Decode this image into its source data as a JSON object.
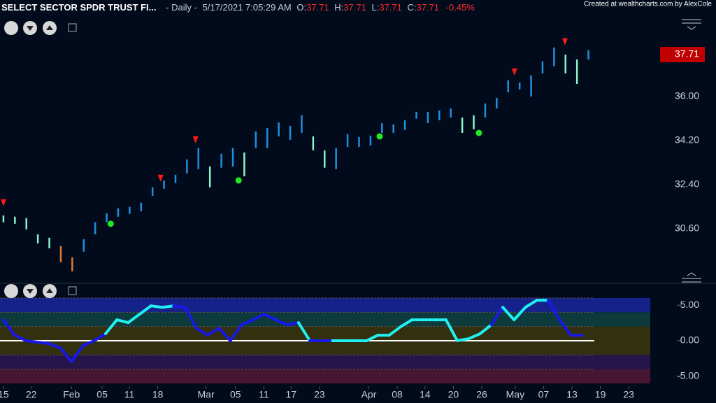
{
  "header": {
    "title": "SELECT SECTOR SPDR TRUST FI...",
    "interval": "- Daily -",
    "timestamp": "5/17/2021 7:05:29 AM",
    "ohlc": [
      {
        "label": "O:",
        "value": "37.71"
      },
      {
        "label": "H:",
        "value": "37.71"
      },
      {
        "label": "L:",
        "value": "37.71"
      },
      {
        "label": "C:",
        "value": "37.71"
      }
    ],
    "change": "-0.45%",
    "credit": "Created at wealthcharts.com by AlexCole"
  },
  "chart_data": [
    {
      "type": "range_bars",
      "x": [
        0,
        2,
        4,
        6,
        8,
        10,
        12,
        14,
        16,
        18,
        20,
        22,
        24,
        26,
        28,
        30,
        32,
        34,
        36,
        38,
        40,
        42,
        44,
        46,
        48,
        50,
        52,
        54,
        56,
        58,
        60,
        62,
        64,
        66,
        68,
        70,
        72,
        74,
        76,
        78,
        80,
        82,
        84,
        86,
        88,
        90,
        92,
        94,
        96,
        98,
        100,
        102
      ],
      "high": [
        31.14,
        31.09,
        31.03,
        30.37,
        30.23,
        29.89,
        29.43,
        30.17,
        30.86,
        31.23,
        31.43,
        31.49,
        31.66,
        32.29,
        32.57,
        32.8,
        33.43,
        33.89,
        33.14,
        33.66,
        33.89,
        33.71,
        34.57,
        34.71,
        34.94,
        34.8,
        35.23,
        34.37,
        33.8,
        33.89,
        34.46,
        34.34,
        34.4,
        34.91,
        34.86,
        35.03,
        35.37,
        35.37,
        35.43,
        35.51,
        35.14,
        35.23,
        35.71,
        35.94,
        36.66,
        36.57,
        36.86,
        37.43,
        38.0,
        37.71,
        37.51,
        37.89
      ],
      "low": [
        30.86,
        30.8,
        30.57,
        30.0,
        29.8,
        29.23,
        28.86,
        29.66,
        30.37,
        30.86,
        31.09,
        31.2,
        31.31,
        31.94,
        32.23,
        32.46,
        32.86,
        33.03,
        32.29,
        33.09,
        33.14,
        32.74,
        33.89,
        33.89,
        34.37,
        34.23,
        34.51,
        33.8,
        33.09,
        33.03,
        33.94,
        33.94,
        34.0,
        34.51,
        34.51,
        34.63,
        35.09,
        34.91,
        35.03,
        35.14,
        34.51,
        34.66,
        35.14,
        35.51,
        36.17,
        36.29,
        36.0,
        36.94,
        37.23,
        36.94,
        36.51,
        37.51
      ],
      "bar_colors": [
        "#8af5c8",
        "#8af5c8",
        "#8af5c8",
        "#8af5c8",
        "#8af5c8",
        "#e07a30",
        "#e07a30",
        "#1e90e0",
        "#1e90e0",
        "#1e90e0",
        "#1e90e0",
        "#1e90e0",
        "#1e90e0",
        "#1e90e0",
        "#1e90e0",
        "#1e90e0",
        "#1e90e0",
        "#1e90e0",
        "#8af5c8",
        "#1e90e0",
        "#1e90e0",
        "#8af5c8",
        "#1e90e0",
        "#1e90e0",
        "#1e90e0",
        "#1e90e0",
        "#1e90e0",
        "#8af5c8",
        "#8af5c8",
        "#1e90e0",
        "#1e90e0",
        "#1e90e0",
        "#1e90e0",
        "#1e90e0",
        "#1e90e0",
        "#1e90e0",
        "#1e90e0",
        "#1e90e0",
        "#1e90e0",
        "#1e90e0",
        "#8af5c8",
        "#8af5c8",
        "#1e90e0",
        "#1e90e0",
        "#1e90e0",
        "#1e90e0",
        "#1e90e0",
        "#1e90e0",
        "#1e90e0",
        "#8af5c8",
        "#8af5c8",
        "#1e90e0"
      ],
      "sell_signals": {
        "x": [
          0,
          27.4,
          33.5,
          89.1,
          97.9
        ],
        "y": [
          31.66,
          32.66,
          34.23,
          37.0,
          38.23
        ],
        "color": "#ff1a1a"
      },
      "buy_signals": {
        "x": [
          18.7,
          41.0,
          65.6,
          82.9
        ],
        "y": [
          30.8,
          32.57,
          34.37,
          34.51
        ],
        "color": "#22e822"
      },
      "xlim": [
        -0.6,
        114
      ],
      "ylim": [
        28.51,
        39.31
      ],
      "yticks": [
        {
          "value": 30.6,
          "label": "30.60"
        },
        {
          "value": 32.4,
          "label": "32.40"
        },
        {
          "value": 34.2,
          "label": "34.20"
        },
        {
          "value": 36.0,
          "label": "36.00"
        }
      ],
      "last_price": 37.71,
      "last_price_color": "#c00000"
    },
    {
      "type": "oscillator",
      "x": [
        0,
        2,
        4,
        6,
        8,
        10,
        12,
        14,
        16,
        18,
        20,
        22,
        24,
        26,
        28,
        30,
        32,
        34,
        36,
        38,
        40,
        42,
        44,
        46,
        48,
        50,
        52,
        54,
        56,
        58,
        60,
        62,
        64,
        66,
        68,
        70,
        72,
        74,
        76,
        78,
        80,
        82,
        84,
        86,
        88,
        90,
        92,
        94,
        96,
        98,
        100,
        102
      ],
      "values": [
        2.94,
        0.78,
        0,
        -0.2,
        -0.4,
        -1,
        -2.94,
        -0.7,
        0,
        0.98,
        2.94,
        2.55,
        3.73,
        4.9,
        4.7,
        4.9,
        4.7,
        1.76,
        0.78,
        1.76,
        0,
        2.25,
        2.94,
        3.73,
        2.94,
        2.25,
        2.55,
        0,
        0,
        0,
        0,
        0,
        0,
        0.78,
        0.78,
        1.96,
        2.94,
        2.94,
        2.94,
        2.94,
        0,
        0.29,
        0.98,
        2.25,
        4.7,
        2.94,
        4.7,
        5.69,
        5.69,
        2.94,
        0.78,
        0.78
      ],
      "point_colors": [
        "#1818e8",
        "#1818e8",
        "#1818e8",
        "#1818e8",
        "#1818e8",
        "#1818e8",
        "#1818e8",
        "#1818e8",
        "#1818e8",
        "#20f0f0",
        "#20f0f0",
        "#20f0f0",
        "#20f0f0",
        "#20f0f0",
        "#20f0f0",
        "#1818e8",
        "#1818e8",
        "#1818e8",
        "#1818e8",
        "#1818e8",
        "#1818e8",
        "#1818e8",
        "#1818e8",
        "#1818e8",
        "#1818e8",
        "#1818e8",
        "#20f0f0",
        "#1818e8",
        "#1818e8",
        "#20f0f0",
        "#20f0f0",
        "#20f0f0",
        "#20f0f0",
        "#20f0f0",
        "#20f0f0",
        "#20f0f0",
        "#20f0f0",
        "#20f0f0",
        "#20f0f0",
        "#20f0f0",
        "#20f0f0",
        "#20f0f0",
        "#20f0f0",
        "#1818e8",
        "#20f0f0",
        "#20f0f0",
        "#20f0f0",
        "#20f0f0",
        "#1818e8",
        "#1818e8",
        "#1818e8",
        "#1818e8"
      ],
      "bands": [
        {
          "from": 4,
          "to": 6,
          "color": "#15228a"
        },
        {
          "from": 2,
          "to": 4,
          "color": "#0d3a3c"
        },
        {
          "from": -2,
          "to": 2,
          "color": "#33300f"
        },
        {
          "from": -4,
          "to": -2,
          "color": "#26154a"
        },
        {
          "from": -6,
          "to": -4,
          "color": "#471633"
        }
      ],
      "baseline": 0,
      "baseline_color": "#ffffff",
      "xlim": [
        -0.6,
        114
      ],
      "ylim": [
        -6,
        6
      ],
      "yticks": [
        {
          "value": -5,
          "label": "-5.00"
        },
        {
          "value": 0,
          "label": "0.00"
        },
        {
          "value": 5,
          "label": "5.00"
        }
      ],
      "xticks": [
        {
          "value": 0,
          "label": "15"
        },
        {
          "value": 4.9,
          "label": "22"
        },
        {
          "value": 12,
          "label": "Feb"
        },
        {
          "value": 17.4,
          "label": "05"
        },
        {
          "value": 22.2,
          "label": "11"
        },
        {
          "value": 27.2,
          "label": "18"
        },
        {
          "value": 35.7,
          "label": "Mar"
        },
        {
          "value": 40.9,
          "label": "05"
        },
        {
          "value": 45.9,
          "label": "11"
        },
        {
          "value": 50.7,
          "label": "17"
        },
        {
          "value": 55.7,
          "label": "23"
        },
        {
          "value": 64.4,
          "label": "Apr"
        },
        {
          "value": 69.4,
          "label": "08"
        },
        {
          "value": 74.3,
          "label": "14"
        },
        {
          "value": 79.3,
          "label": "20"
        },
        {
          "value": 84.3,
          "label": "26"
        },
        {
          "value": 90.2,
          "label": "May"
        },
        {
          "value": 95.2,
          "label": "07"
        },
        {
          "value": 100.2,
          "label": "13"
        },
        {
          "value": 105.2,
          "label": "19"
        },
        {
          "value": 110.2,
          "label": "23"
        }
      ]
    }
  ]
}
